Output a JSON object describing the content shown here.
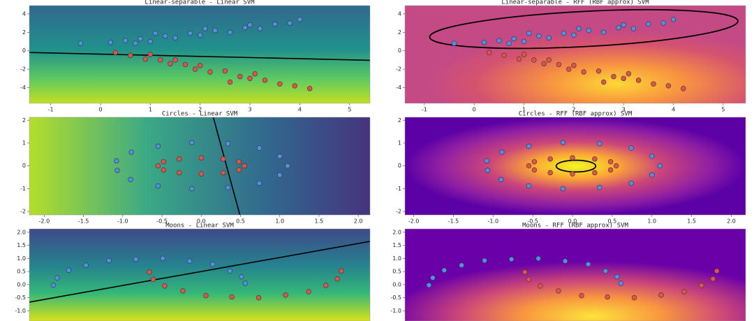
{
  "chart_data": [
    {
      "type": "scatter",
      "title": "Linear-separable - Linear SVM",
      "colormap": "viridis",
      "xlim": [
        -1.43,
        5.41
      ],
      "ylim": [
        -5.7,
        4.9
      ],
      "xticks": [
        -1,
        0,
        1,
        2,
        3,
        4,
        5
      ],
      "yticks": [
        -4,
        -2,
        0,
        2,
        4
      ],
      "series": [
        {
          "color": "#4f8fe6",
          "x": [
            -0.4,
            0.2,
            0.5,
            0.8,
            1.0,
            1.3,
            1.5,
            1.8,
            2.0,
            2.3,
            2.6,
            2.9,
            3.2,
            3.5,
            3.8,
            4.0,
            1.1,
            2.1,
            3.0,
            0.7
          ],
          "values": [
            0.8,
            0.9,
            1.1,
            1.3,
            1.0,
            1.6,
            1.4,
            1.9,
            1.7,
            2.2,
            2.0,
            2.5,
            2.4,
            2.9,
            3.0,
            3.4,
            1.9,
            2.4,
            2.8,
            0.8
          ]
        },
        {
          "color": "#e0534a",
          "x": [
            0.3,
            0.6,
            0.9,
            1.2,
            1.4,
            1.7,
            1.9,
            2.2,
            2.5,
            2.8,
            3.0,
            3.3,
            3.6,
            3.9,
            4.2,
            1.0,
            2.0,
            3.1,
            1.5,
            2.6
          ],
          "values": [
            -0.2,
            -0.5,
            -0.9,
            -1.0,
            -1.4,
            -1.5,
            -2.0,
            -2.3,
            -2.2,
            -2.8,
            -3.0,
            -3.2,
            -3.6,
            -3.8,
            -4.1,
            -0.4,
            -1.6,
            -2.5,
            -1.0,
            -3.4
          ]
        }
      ]
    },
    {
      "type": "scatter",
      "title": "Linear-separable - RFF (RBF approx) SVM",
      "colormap": "plasma",
      "xlim": [
        -1.39,
        5.45
      ],
      "ylim": [
        -5.7,
        4.9
      ],
      "xticks": [
        -1,
        0,
        1,
        2,
        3,
        4,
        5
      ],
      "yticks": [
        -4,
        -2,
        0,
        2,
        4
      ],
      "series": [
        {
          "color": "#4f8fe6",
          "x": [
            -0.4,
            0.2,
            0.5,
            0.8,
            1.0,
            1.3,
            1.5,
            1.8,
            2.0,
            2.3,
            2.6,
            2.9,
            3.2,
            3.5,
            3.8,
            4.0,
            1.1,
            2.1,
            3.0,
            0.7
          ],
          "values": [
            0.8,
            0.9,
            1.1,
            1.3,
            1.0,
            1.6,
            1.4,
            1.9,
            1.7,
            2.2,
            2.0,
            2.5,
            2.4,
            2.9,
            3.0,
            3.4,
            1.9,
            2.4,
            2.8,
            0.8
          ]
        },
        {
          "color": "#e0534a",
          "x": [
            0.3,
            0.6,
            0.9,
            1.2,
            1.4,
            1.7,
            1.9,
            2.2,
            2.5,
            2.8,
            3.0,
            3.3,
            3.6,
            3.9,
            4.2,
            1.0,
            2.0,
            3.1,
            1.5,
            2.6
          ],
          "values": [
            -0.2,
            -0.5,
            -0.9,
            -1.0,
            -1.4,
            -1.5,
            -2.0,
            -2.3,
            -2.2,
            -2.8,
            -3.0,
            -3.2,
            -3.6,
            -3.8,
            -4.1,
            -0.4,
            -1.6,
            -2.5,
            -1.0,
            -3.4
          ]
        }
      ]
    },
    {
      "type": "scatter",
      "title": "Circles - Linear SVM",
      "colormap": "viridis",
      "xlim": [
        -2.19,
        2.15
      ],
      "ylim": [
        -2.15,
        2.13
      ],
      "xticks": [
        {
          "value": -2,
          "label": "-2.0"
        },
        -1.5,
        {
          "value": -1,
          "label": "-1.0"
        },
        -0.5,
        {
          "value": 0,
          "label": "0.0"
        },
        0.5,
        {
          "value": 1,
          "label": "1.0"
        },
        1.5,
        {
          "value": 2,
          "label": "2.0"
        }
      ],
      "yticks": [
        -2,
        -1,
        0,
        1,
        2
      ],
      "series": [
        {
          "color": "#4f8fe6",
          "x": [
            1.1,
            1.0,
            0.74,
            0.34,
            -0.12,
            -0.55,
            -0.89,
            -1.08,
            -1.07,
            -0.9,
            -0.55,
            -0.12,
            0.34,
            0.74,
            1.0
          ],
          "values": [
            0.0,
            0.42,
            0.78,
            0.97,
            1.02,
            0.86,
            0.6,
            0.22,
            -0.2,
            -0.6,
            -0.88,
            -1.0,
            -0.95,
            -0.76,
            -0.4
          ]
        },
        {
          "color": "#e0534a",
          "x": [
            0.55,
            0.48,
            0.28,
            0.0,
            -0.28,
            -0.48,
            -0.55,
            -0.48,
            -0.28,
            0.0,
            0.28,
            0.48
          ],
          "values": [
            0.0,
            0.18,
            0.3,
            0.35,
            0.3,
            0.18,
            0.0,
            -0.18,
            -0.3,
            -0.35,
            -0.3,
            -0.18
          ]
        }
      ]
    },
    {
      "type": "scatter",
      "title": "Circles - RFF (RBF approx) SVM",
      "colormap": "plasma",
      "xlim": [
        -2.11,
        2.18
      ],
      "ylim": [
        -2.15,
        2.13
      ],
      "xticks": [
        {
          "value": -2,
          "label": "-2.0"
        },
        -1.5,
        {
          "value": -1,
          "label": "-1.0"
        },
        -0.5,
        {
          "value": 0,
          "label": "0.0"
        },
        0.5,
        {
          "value": 1,
          "label": "1.0"
        },
        1.5,
        {
          "value": 2,
          "label": "2.0"
        }
      ],
      "yticks": [
        -2,
        -1,
        0,
        1,
        2
      ],
      "series": [
        {
          "color": "#4f8fe6",
          "x": [
            1.1,
            1.0,
            0.74,
            0.34,
            -0.12,
            -0.55,
            -0.89,
            -1.08,
            -1.07,
            -0.9,
            -0.55,
            -0.12,
            0.34,
            0.74,
            1.0
          ],
          "values": [
            0.0,
            0.42,
            0.78,
            0.97,
            1.02,
            0.86,
            0.6,
            0.22,
            -0.2,
            -0.6,
            -0.88,
            -1.0,
            -0.95,
            -0.76,
            -0.4
          ]
        },
        {
          "color": "#e0534a",
          "x": [
            0.55,
            0.48,
            0.28,
            0.0,
            -0.28,
            -0.48,
            -0.55,
            -0.48,
            -0.28,
            0.0,
            0.28,
            0.48
          ],
          "values": [
            0.0,
            0.18,
            0.3,
            0.35,
            0.3,
            0.18,
            0.0,
            -0.18,
            -0.3,
            -0.35,
            -0.3,
            -0.18
          ]
        }
      ]
    },
    {
      "type": "scatter",
      "title": "Moons - Linear SVM",
      "colormap": "viridis",
      "xlim": [
        -1.25,
        2.3
      ],
      "ylim": [
        -1.39,
        2.13
      ],
      "yticks": [
        {
          "value": -1,
          "label": "-1.0"
        },
        -0.5,
        {
          "value": 0,
          "label": "0.0"
        },
        0.5,
        {
          "value": 1,
          "label": "1.0"
        },
        1.5,
        {
          "value": 2,
          "label": "2.0"
        }
      ],
      "series": [
        {
          "color": "#4f8fe6",
          "x": [
            1.0,
            0.96,
            0.84,
            0.66,
            0.42,
            0.14,
            -0.14,
            -0.42,
            -0.66,
            -0.84,
            -0.96,
            -1.0
          ],
          "values": [
            0.05,
            0.3,
            0.52,
            0.78,
            0.9,
            1.0,
            0.97,
            0.92,
            0.74,
            0.55,
            0.26,
            -0.02
          ]
        },
        {
          "color": "#e0534a",
          "x": [
            0.0,
            0.04,
            0.16,
            0.35,
            0.59,
            0.86,
            1.14,
            1.42,
            1.66,
            1.84,
            1.96,
            2.0
          ],
          "values": [
            0.48,
            0.2,
            -0.05,
            -0.24,
            -0.42,
            -0.47,
            -0.5,
            -0.4,
            -0.27,
            -0.03,
            0.22,
            0.52
          ]
        }
      ]
    },
    {
      "type": "scatter",
      "title": "Moons - RFF (RBF approx) SVM",
      "colormap": "plasma",
      "xlim": [
        -1.25,
        2.3
      ],
      "ylim": [
        -1.39,
        2.13
      ],
      "yticks": [
        {
          "value": -1,
          "label": "-1.0"
        },
        -0.5,
        {
          "value": 0,
          "label": "0.0"
        },
        0.5,
        {
          "value": 1,
          "label": "1.0"
        },
        1.5,
        {
          "value": 2,
          "label": "2.0"
        }
      ],
      "series": [
        {
          "color": "#4f8fe6",
          "x": [
            1.0,
            0.96,
            0.84,
            0.66,
            0.42,
            0.14,
            -0.14,
            -0.42,
            -0.66,
            -0.84,
            -0.96,
            -1.0
          ],
          "values": [
            0.05,
            0.3,
            0.52,
            0.78,
            0.9,
            1.0,
            0.97,
            0.92,
            0.74,
            0.55,
            0.26,
            -0.02
          ]
        },
        {
          "color": "#e0534a",
          "x": [
            0.0,
            0.04,
            0.16,
            0.35,
            0.59,
            0.86,
            1.14,
            1.42,
            1.66,
            1.84,
            1.96,
            2.0
          ],
          "values": [
            0.48,
            0.2,
            -0.05,
            -0.24,
            -0.42,
            -0.47,
            -0.5,
            -0.4,
            -0.27,
            -0.03,
            0.22,
            0.52
          ]
        }
      ]
    }
  ]
}
